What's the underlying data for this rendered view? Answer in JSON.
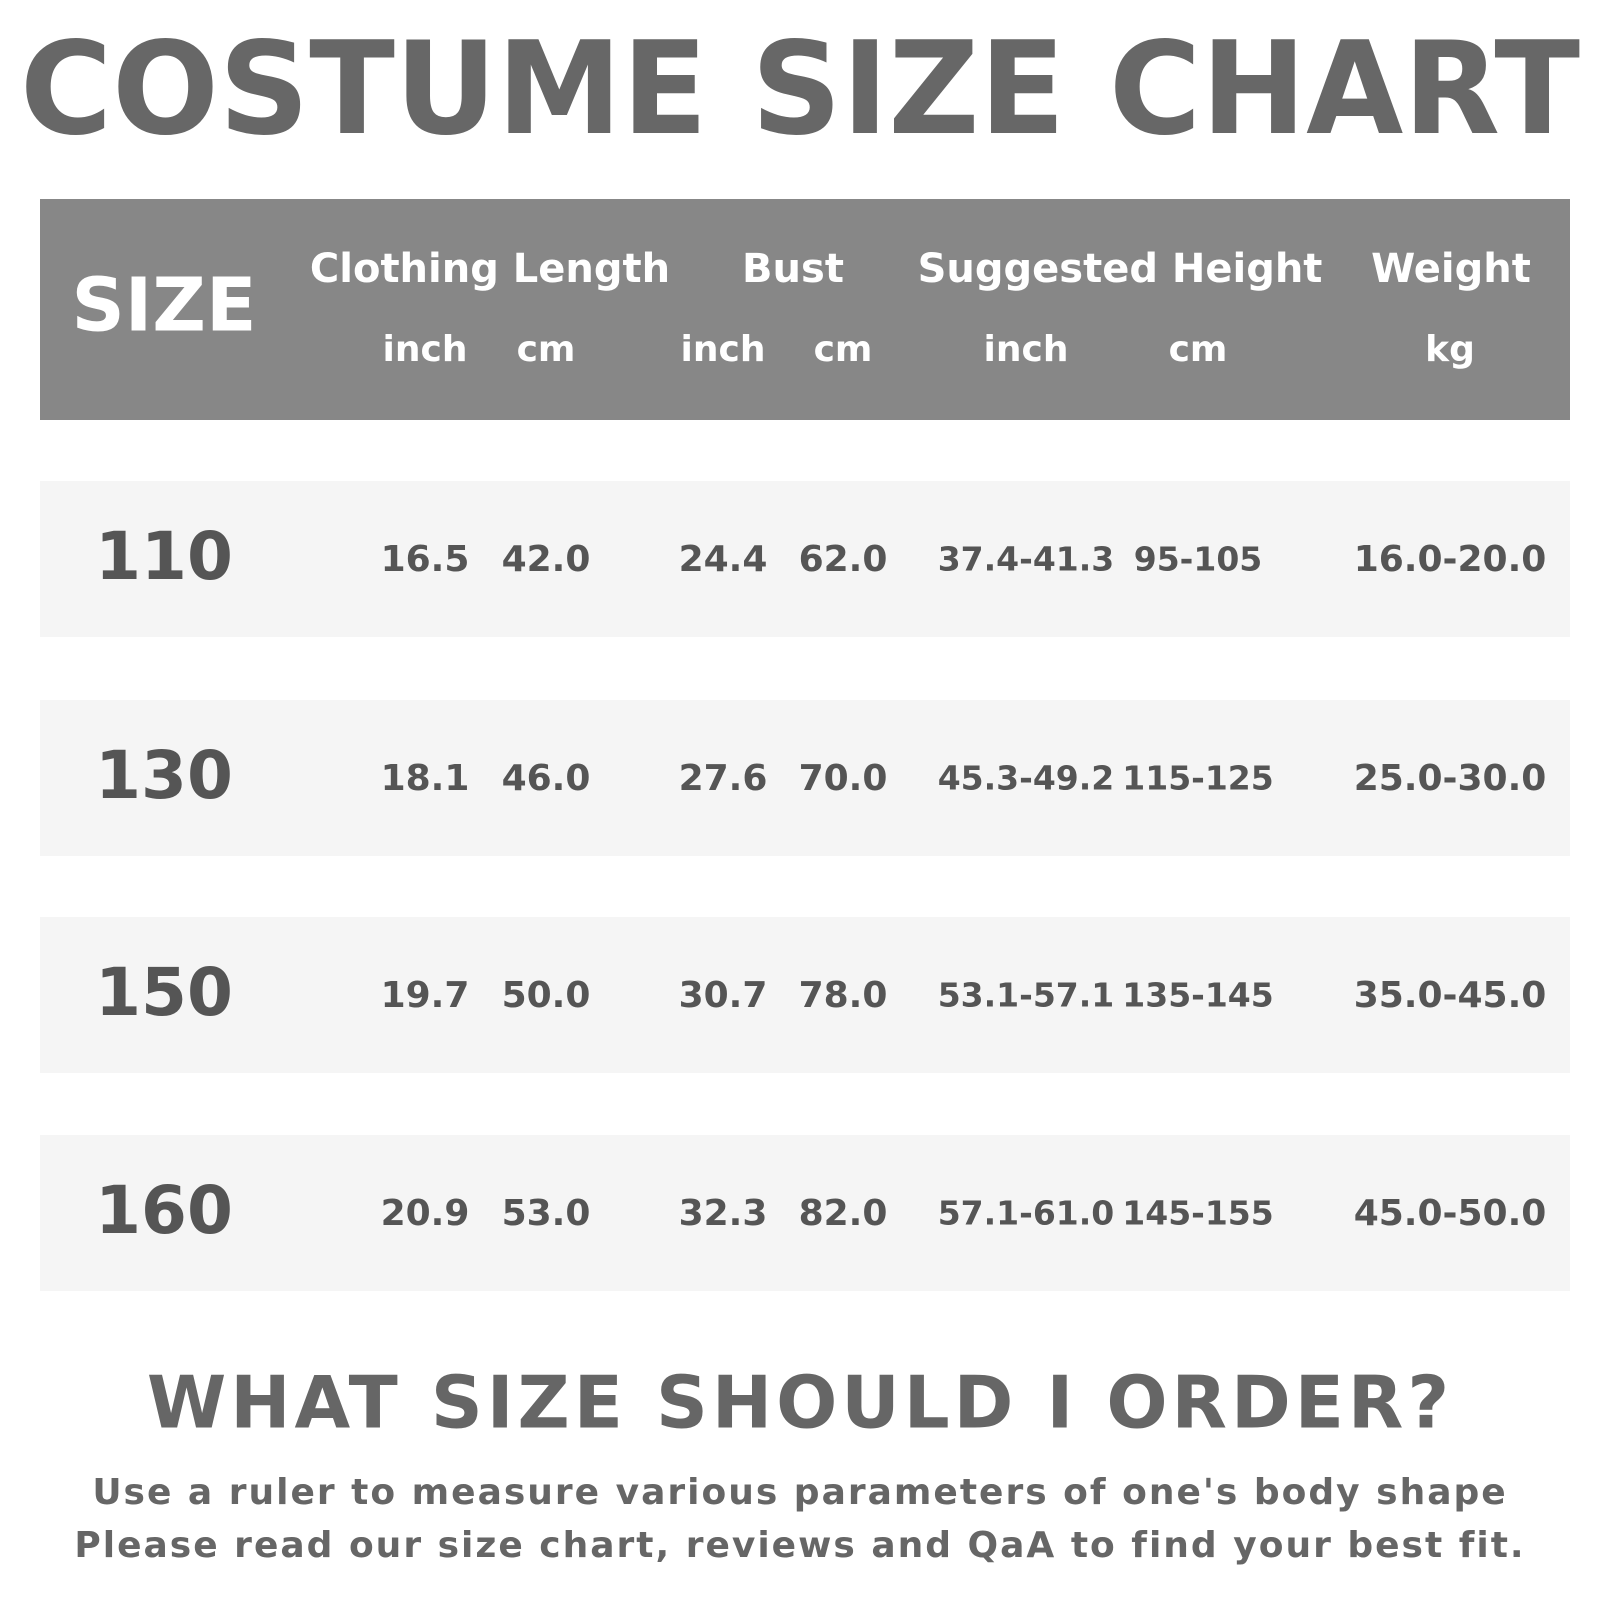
{
  "title": "COSTUME SIZE CHART",
  "table": {
    "size_header": "SIZE",
    "columns": [
      {
        "name": "Clothing Length",
        "units": [
          "inch",
          "cm"
        ]
      },
      {
        "name": "Bust",
        "units": [
          "inch",
          "cm"
        ]
      },
      {
        "name": "Suggested Height",
        "units": [
          "inch",
          "cm"
        ]
      },
      {
        "name": "Weight",
        "units": [
          "kg"
        ]
      }
    ],
    "rows": [
      [
        "110",
        "16.5",
        "42.0",
        "24.4",
        "62.0",
        "37.4-41.3",
        "95-105",
        "16.0-20.0"
      ],
      [
        "130",
        "18.1",
        "46.0",
        "27.6",
        "70.0",
        "45.3-49.2",
        "115-125",
        "25.0-30.0"
      ],
      [
        "150",
        "19.7",
        "50.0",
        "30.7",
        "78.0",
        "53.1-57.1",
        "135-145",
        "35.0-45.0"
      ],
      [
        "160",
        "20.9",
        "53.0",
        "32.3",
        "82.0",
        "57.1-61.0",
        "145-155",
        "45.0-50.0"
      ]
    ]
  },
  "footer": {
    "heading": "WHAT SIZE SHOULD I ORDER?",
    "lines": [
      "Use a ruler to measure various parameters of one's body shape",
      "Please read our size chart, reviews and QaA to find your best fit."
    ]
  }
}
